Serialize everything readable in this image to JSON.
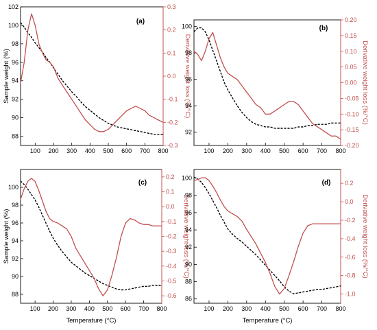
{
  "colors": {
    "weight": "#000000",
    "derivative": "#c0504d",
    "axis_right": "#c0504d",
    "frame": "#000000"
  },
  "chart_data": [
    {
      "panel": "(a)",
      "type": "line",
      "x": [
        20,
        40,
        60,
        80,
        100,
        120,
        140,
        160,
        180,
        200,
        225,
        250,
        275,
        300,
        325,
        350,
        375,
        400,
        425,
        450,
        475,
        500,
        525,
        550,
        575,
        600,
        625,
        650,
        675,
        700,
        725,
        750,
        775,
        800
      ],
      "series": [
        {
          "axis": "left",
          "style": "dashed",
          "values": [
            100.3,
            99.8,
            99.2,
            98.7,
            98.1,
            97.6,
            97.1,
            96.5,
            96.0,
            95.4,
            94.7,
            94.0,
            93.4,
            92.8,
            92.3,
            91.7,
            91.2,
            90.8,
            90.4,
            90.0,
            89.7,
            89.4,
            89.2,
            89.0,
            88.9,
            88.8,
            88.7,
            88.6,
            88.5,
            88.4,
            88.3,
            88.2,
            88.2,
            88.2
          ]
        },
        {
          "axis": "right",
          "style": "solid",
          "values": [
            -0.03,
            0.06,
            0.2,
            0.27,
            0.22,
            0.14,
            0.1,
            0.07,
            0.06,
            0.04,
            -0.01,
            -0.04,
            -0.07,
            -0.1,
            -0.13,
            -0.16,
            -0.19,
            -0.21,
            -0.23,
            -0.24,
            -0.24,
            -0.23,
            -0.21,
            -0.19,
            -0.17,
            -0.15,
            -0.14,
            -0.13,
            -0.14,
            -0.15,
            -0.17,
            -0.18,
            -0.19,
            -0.2
          ]
        }
      ],
      "x_ticks": [
        100,
        200,
        300,
        400,
        500,
        600,
        700,
        800
      ],
      "xlim": [
        20,
        800
      ],
      "ylim_left": [
        87,
        102
      ],
      "yticks_left": [
        88,
        90,
        92,
        94,
        96,
        98,
        100,
        102
      ],
      "ylim_right": [
        -0.3,
        0.3
      ],
      "yticks_right": [
        "-0.3",
        "-0.2",
        "-0.1",
        "0.0",
        "0.1",
        "0.2",
        "0.3"
      ],
      "ylabel_left": "Sample weight (%)",
      "ylabel_right": "Derivative weight loss (%/°C)",
      "xlabel": ""
    },
    {
      "panel": "(b)",
      "type": "line",
      "x": [
        20,
        40,
        60,
        80,
        100,
        120,
        140,
        160,
        180,
        200,
        225,
        250,
        275,
        300,
        325,
        350,
        375,
        400,
        425,
        450,
        475,
        500,
        525,
        550,
        575,
        600,
        625,
        650,
        675,
        700,
        725,
        750,
        775,
        800
      ],
      "series": [
        {
          "axis": "left",
          "style": "dashed",
          "values": [
            99.6,
            99.9,
            99.9,
            99.6,
            99.0,
            98.2,
            97.4,
            96.6,
            95.8,
            95.2,
            94.6,
            94.0,
            93.5,
            93.1,
            92.8,
            92.6,
            92.5,
            92.4,
            92.4,
            92.3,
            92.3,
            92.3,
            92.3,
            92.3,
            92.4,
            92.4,
            92.5,
            92.5,
            92.6,
            92.6,
            92.6,
            92.7,
            92.7,
            92.7
          ]
        },
        {
          "axis": "right",
          "style": "solid",
          "values": [
            0.1,
            0.09,
            0.07,
            0.1,
            0.14,
            0.16,
            0.12,
            0.08,
            0.05,
            0.03,
            0.02,
            0.01,
            -0.01,
            -0.03,
            -0.05,
            -0.07,
            -0.08,
            -0.1,
            -0.1,
            -0.09,
            -0.08,
            -0.07,
            -0.06,
            -0.06,
            -0.07,
            -0.09,
            -0.11,
            -0.13,
            -0.14,
            -0.15,
            -0.16,
            -0.17,
            -0.17,
            -0.18
          ]
        }
      ],
      "x_ticks": [
        100,
        200,
        300,
        400,
        500,
        600,
        700,
        800
      ],
      "xlim": [
        20,
        800
      ],
      "ylim_left": [
        91,
        100.5
      ],
      "yticks_left": [
        92,
        94,
        96,
        98,
        100
      ],
      "ylim_right": [
        -0.2,
        0.2
      ],
      "yticks_right": [
        "-0.20",
        "-0.15",
        "-0.10",
        "-0.05",
        "0.00",
        "0.05",
        "0.10",
        "0.15",
        "0.20"
      ],
      "ylabel_left": "",
      "ylabel_right": "Derivative weight loss (%/°C)",
      "xlabel": ""
    },
    {
      "panel": "(c)",
      "type": "line",
      "x": [
        20,
        40,
        60,
        80,
        100,
        120,
        140,
        160,
        180,
        200,
        225,
        250,
        275,
        300,
        325,
        350,
        375,
        400,
        425,
        450,
        475,
        500,
        525,
        550,
        575,
        600,
        625,
        650,
        675,
        700,
        725,
        750,
        775,
        800
      ],
      "series": [
        {
          "axis": "left",
          "style": "dashed",
          "values": [
            100.7,
            100.3,
            99.8,
            99.2,
            98.6,
            97.8,
            96.9,
            96.0,
            95.1,
            94.3,
            93.5,
            92.8,
            92.2,
            91.6,
            91.2,
            90.8,
            90.4,
            90.1,
            89.8,
            89.5,
            89.2,
            89.0,
            88.8,
            88.6,
            88.5,
            88.5,
            88.6,
            88.7,
            88.8,
            88.9,
            88.9,
            89.0,
            89.0,
            89.0
          ]
        },
        {
          "axis": "right",
          "style": "solid",
          "values": [
            0.05,
            0.12,
            0.17,
            0.19,
            0.17,
            0.11,
            0.04,
            -0.03,
            -0.08,
            -0.1,
            -0.11,
            -0.13,
            -0.15,
            -0.2,
            -0.28,
            -0.33,
            -0.38,
            -0.43,
            -0.48,
            -0.55,
            -0.6,
            -0.56,
            -0.46,
            -0.34,
            -0.2,
            -0.11,
            -0.08,
            -0.09,
            -0.11,
            -0.12,
            -0.12,
            -0.13,
            -0.13,
            -0.13
          ]
        }
      ],
      "x_ticks": [
        100,
        200,
        300,
        400,
        500,
        600,
        700,
        800
      ],
      "xlim": [
        20,
        800
      ],
      "ylim_left": [
        87,
        102
      ],
      "yticks_left": [
        88,
        90,
        92,
        94,
        96,
        98,
        100
      ],
      "ylim_right": [
        -0.65,
        0.25
      ],
      "yticks_right": [
        "-0.6",
        "-0.5",
        "-0.4",
        "-0.3",
        "-0.2",
        "-0.1",
        "0.0",
        "0.1",
        "0.2"
      ],
      "ylabel_left": "Sample weight (%)",
      "ylabel_right": "Derivative weight loss (%/°C)",
      "xlabel": "Temperature (°C)"
    },
    {
      "panel": "(d)",
      "type": "line",
      "x": [
        20,
        40,
        60,
        80,
        100,
        120,
        140,
        160,
        180,
        200,
        225,
        250,
        275,
        300,
        325,
        350,
        375,
        400,
        425,
        450,
        475,
        500,
        525,
        550,
        575,
        600,
        625,
        650,
        675,
        700,
        725,
        750,
        775,
        800
      ],
      "series": [
        {
          "axis": "left",
          "style": "dashed",
          "values": [
            100.1,
            99.9,
            99.5,
            98.9,
            98.2,
            97.4,
            96.6,
            95.7,
            94.9,
            94.1,
            93.5,
            93.0,
            92.6,
            92.1,
            91.6,
            91.1,
            90.5,
            89.9,
            89.3,
            88.7,
            88.1,
            87.4,
            86.9,
            86.6,
            86.7,
            86.8,
            86.9,
            87.0,
            87.1,
            87.1,
            87.2,
            87.3,
            87.4,
            87.5
          ]
        },
        {
          "axis": "right",
          "style": "solid",
          "values": [
            0.23,
            0.24,
            0.26,
            0.26,
            0.23,
            0.17,
            0.1,
            0.02,
            -0.05,
            -0.1,
            -0.13,
            -0.16,
            -0.21,
            -0.3,
            -0.38,
            -0.46,
            -0.56,
            -0.66,
            -0.78,
            -0.92,
            -1.0,
            -0.94,
            -0.8,
            -0.65,
            -0.48,
            -0.34,
            -0.26,
            -0.24,
            -0.24,
            -0.24,
            -0.24,
            -0.24,
            -0.24,
            -0.24
          ]
        }
      ],
      "x_ticks": [
        100,
        200,
        300,
        400,
        500,
        600,
        700,
        800
      ],
      "xlim": [
        20,
        800
      ],
      "ylim_left": [
        85.5,
        101
      ],
      "yticks_left": [
        86,
        88,
        90,
        92,
        94,
        96,
        98,
        100
      ],
      "ylim_right": [
        -1.1,
        0.35
      ],
      "yticks_right": [
        "-1.0",
        "-0.8",
        "-0.6",
        "-0.4",
        "-0.2",
        "0.0",
        "0.2"
      ],
      "ylabel_left": "",
      "ylabel_right": "Derivative weight loss (%/°C)",
      "xlabel": "Temperature (°C)"
    }
  ]
}
